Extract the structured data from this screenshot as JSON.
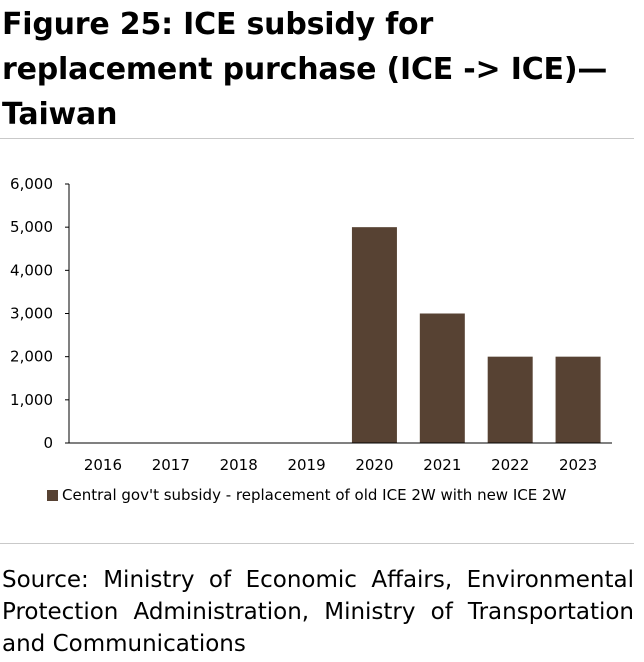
{
  "figure": {
    "title": "Figure 25: ICE subsidy for replacement purchase (ICE -> ICE)—Taiwan",
    "source": "Source: Ministry of Economic Affairs, Environmental Protection Administration, Ministry of Transportation and Communications"
  },
  "colors": {
    "bar": "#574233",
    "axis": "#000000",
    "rule": "#c9c9c9"
  },
  "chart_data": {
    "type": "bar",
    "title": "",
    "xlabel": "",
    "ylabel": "",
    "categories": [
      "2016",
      "2017",
      "2018",
      "2019",
      "2020",
      "2021",
      "2022",
      "2023"
    ],
    "series": [
      {
        "name": "Central gov't subsidy - replacement of old ICE 2W with new ICE 2W",
        "values": [
          0,
          0,
          0,
          0,
          5000,
          3000,
          2000,
          2000
        ]
      }
    ],
    "ylim": [
      0,
      6000
    ],
    "yticks": [
      "0",
      "1,000",
      "2,000",
      "3,000",
      "4,000",
      "5,000",
      "6,000"
    ],
    "ytick_values": [
      0,
      1000,
      2000,
      3000,
      4000,
      5000,
      6000
    ],
    "grid": false,
    "legend_position": "bottom"
  }
}
